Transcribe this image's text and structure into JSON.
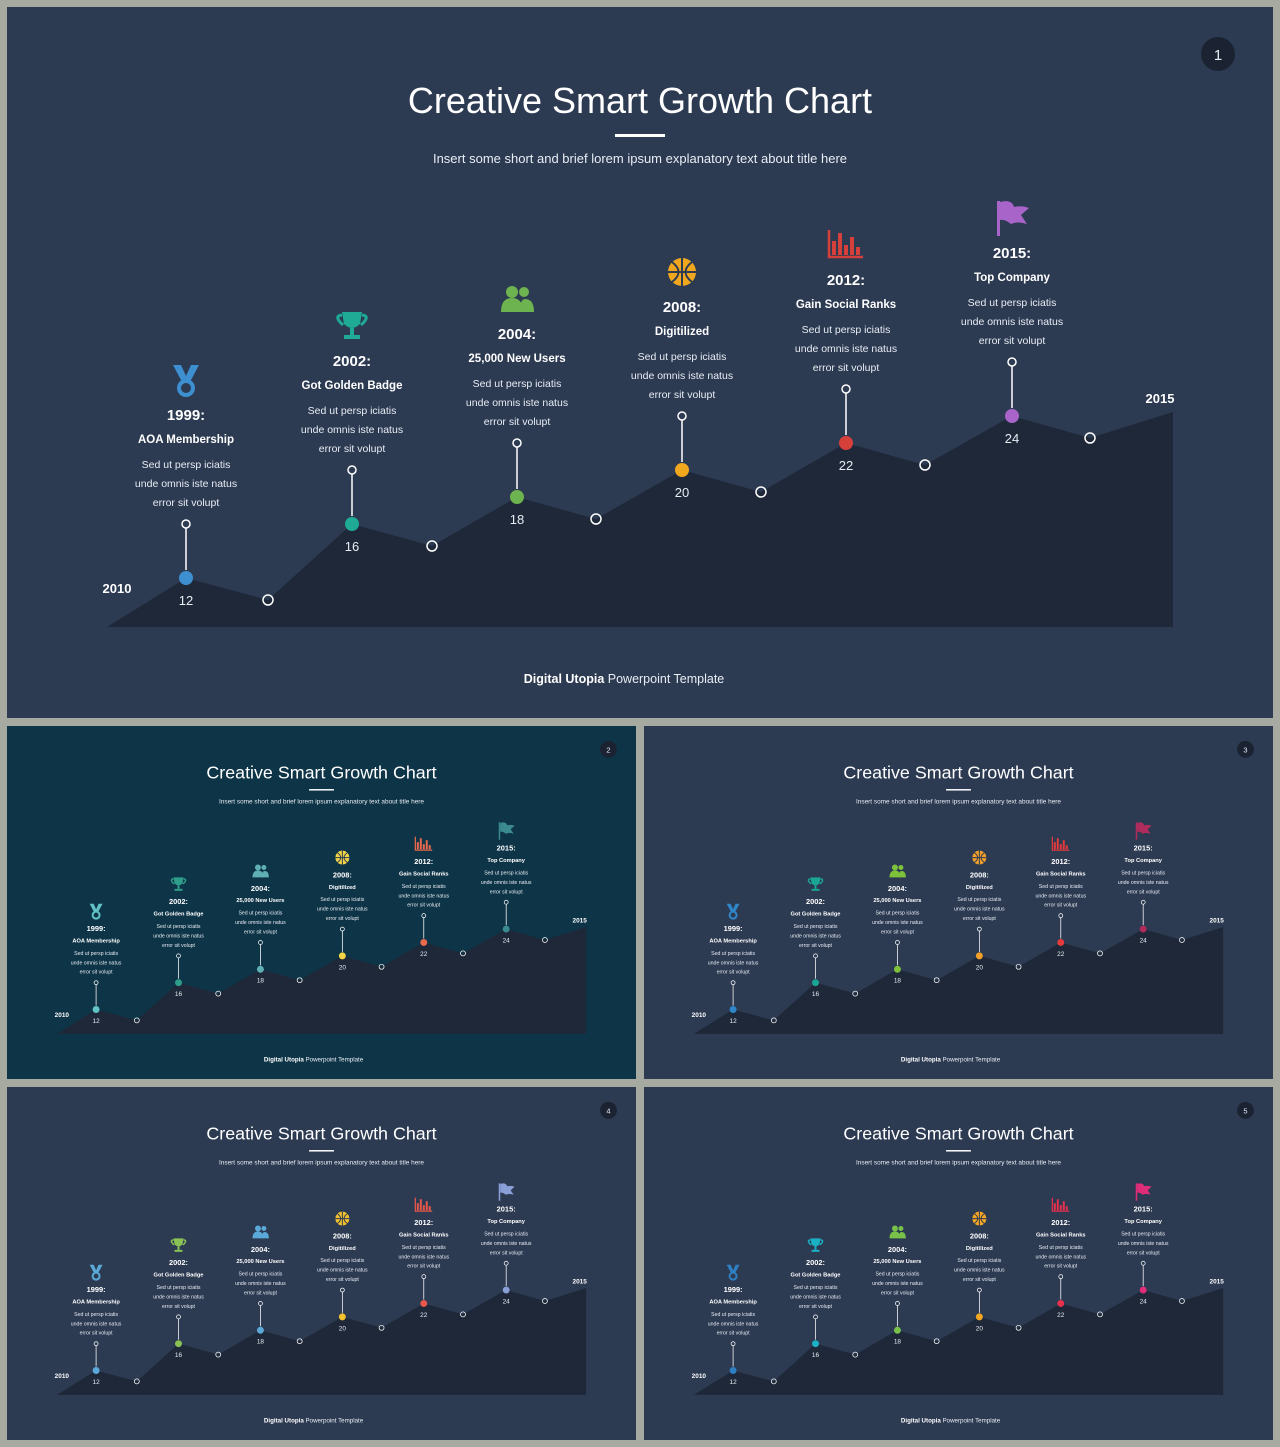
{
  "title": "Creative Smart Growth Chart",
  "subtitle": "Insert some short and brief lorem ipsum explanatory text about title here",
  "footer": {
    "brand": "Digital Utopia",
    "rest": " Powerpoint Template"
  },
  "axis": {
    "start_label": "2010",
    "end_label": "2015"
  },
  "milestone_text": "Sed ut persp iciatis unde omnis iste natus error sit volupt",
  "milestones": [
    {
      "year": "1999:",
      "name": "AOA Membership",
      "value": 12,
      "icon": "medal-icon"
    },
    {
      "year": "2002:",
      "name": "Got Golden  Badge",
      "value": 16,
      "icon": "trophy-icon"
    },
    {
      "year": "2004:",
      "name": "25,000 New Users",
      "value": 18,
      "icon": "users-icon"
    },
    {
      "year": "2008:",
      "name": "Digitilized",
      "value": 20,
      "icon": "basketball-icon"
    },
    {
      "year": "2012:",
      "name": "Gain Social  Ranks",
      "value": 22,
      "icon": "bar-chart-icon"
    },
    {
      "year": "2015:",
      "name": "Top Company",
      "value": 24,
      "icon": "flag-icon"
    }
  ],
  "slides": [
    {
      "number": "1",
      "colors": [
        "#3d8fd0",
        "#1faa96",
        "#6db34f",
        "#f0a71e",
        "#d6403a",
        "#a864c9"
      ]
    },
    {
      "number": "2",
      "colors": [
        "#62c3c7",
        "#2e9e8a",
        "#5fb0b5",
        "#f1d546",
        "#ea6a4e",
        "#3a8a8f"
      ]
    },
    {
      "number": "3",
      "colors": [
        "#2f86c9",
        "#1aa595",
        "#7ec23b",
        "#f2a02a",
        "#e53b3b",
        "#b02c5c"
      ]
    },
    {
      "number": "4",
      "colors": [
        "#5aa9d8",
        "#89c154",
        "#5aa9d8",
        "#f2c12e",
        "#e8584a",
        "#8a9ed8"
      ]
    },
    {
      "number": "5",
      "colors": [
        "#2e7fc1",
        "#1bb0c3",
        "#78c24a",
        "#f5a623",
        "#e9304e",
        "#e02d7a"
      ]
    }
  ]
}
